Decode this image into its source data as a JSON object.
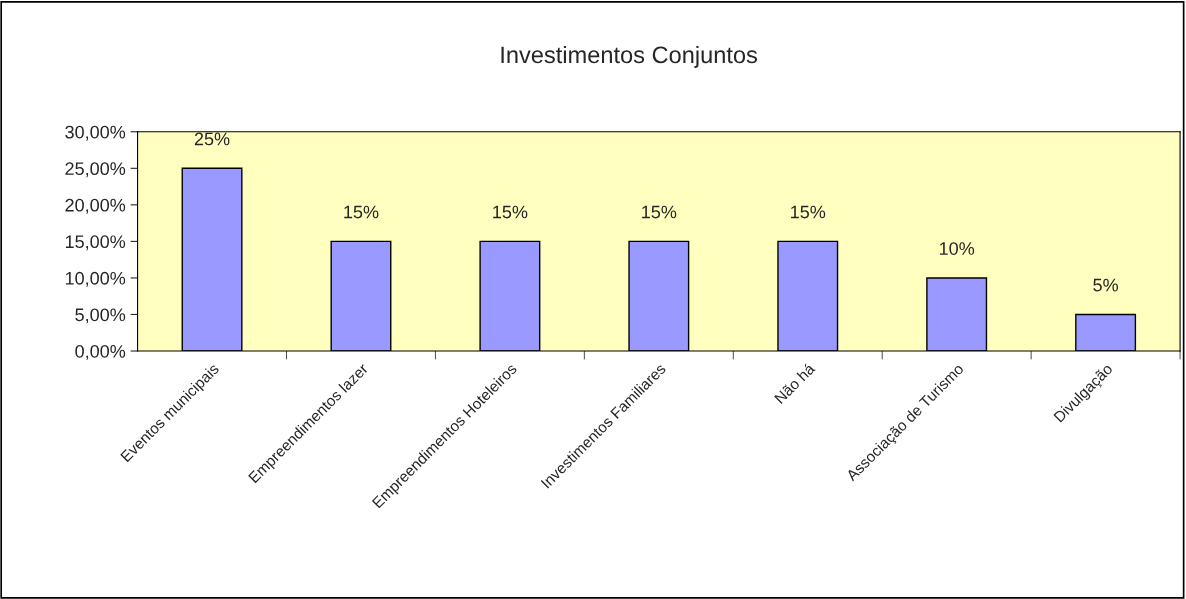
{
  "chart_data": {
    "type": "bar",
    "title": "Investimentos Conjuntos",
    "categories": [
      "Eventos municipais",
      "Empreendimentos lazer",
      "Empreendimentos Hoteleiros",
      "Investimentos Familiares",
      "Não há",
      "Associação de Turismo",
      "Divulgação"
    ],
    "values": [
      25,
      15,
      15,
      15,
      15,
      10,
      5
    ],
    "value_labels": [
      "25%",
      "15%",
      "15%",
      "15%",
      "15%",
      "10%",
      "5%"
    ],
    "color": "#9999ff",
    "ylim": [
      0,
      30
    ],
    "yticks": [
      {
        "value": 0,
        "label": "0,00%"
      },
      {
        "value": 5,
        "label": "5,00%"
      },
      {
        "value": 10,
        "label": "10,00%"
      },
      {
        "value": 15,
        "label": "15,00%"
      },
      {
        "value": 20,
        "label": "20,00%"
      },
      {
        "value": 25,
        "label": "25,00%"
      },
      {
        "value": 30,
        "label": "30,00%"
      }
    ],
    "grid": false,
    "legend": false
  }
}
